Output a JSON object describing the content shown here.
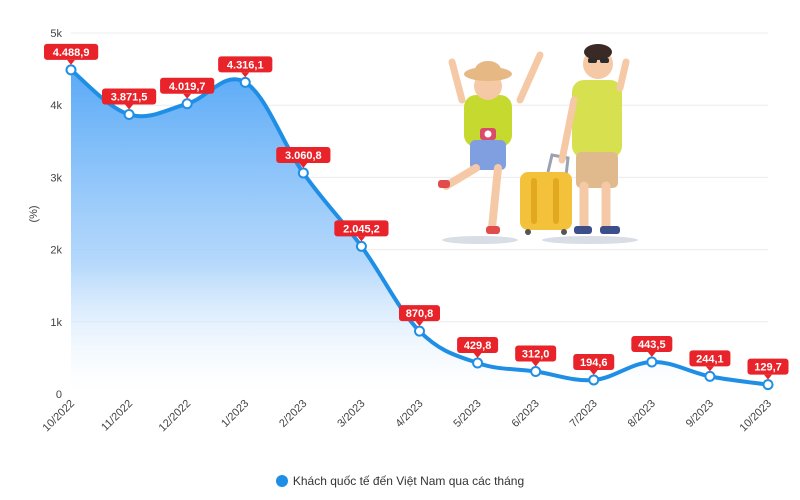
{
  "chart_data": {
    "type": "area",
    "title": "",
    "xlabel": "",
    "ylabel": "(%)",
    "categories": [
      "10/2022",
      "11/2022",
      "12/2022",
      "1/2023",
      "2/2023",
      "3/2023",
      "4/2023",
      "5/2023",
      "6/2023",
      "7/2023",
      "8/2023",
      "9/2023",
      "10/2023"
    ],
    "series": [
      {
        "name": "Khách quốc tế đến Việt Nam qua các tháng",
        "values": [
          4488.9,
          3871.5,
          4019.7,
          4316.1,
          3060.8,
          2045.2,
          870.8,
          429.8,
          312.0,
          194.6,
          443.5,
          244.1,
          129.7
        ],
        "labels": [
          "4.488,9",
          "3.871,5",
          "4.019,7",
          "4.316,1",
          "3.060,8",
          "2.045,2",
          "870,8",
          "429,8",
          "312,0",
          "194,6",
          "443,5",
          "244,1",
          "129,7"
        ]
      }
    ],
    "ylim": [
      0,
      5000
    ],
    "yticks": [
      0,
      1000,
      2000,
      3000,
      4000,
      5000
    ],
    "ytick_labels": [
      "0",
      "1k",
      "2k",
      "3k",
      "4k",
      "5k"
    ],
    "grid": true,
    "legend_position": "bottom",
    "colors": {
      "line": "#1f8fe6",
      "area_top": "#5aaaf7",
      "label_bg": "#e8232a",
      "grid": "#ececec"
    },
    "decoration": "illustration of two cheerful travelers with a yellow suitcase"
  }
}
